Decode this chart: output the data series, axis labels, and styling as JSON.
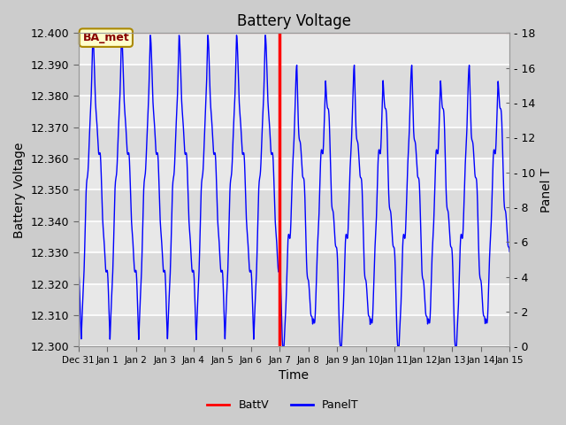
{
  "title": "Battery Voltage",
  "xlabel": "Time",
  "ylabel_left": "Battery Voltage",
  "ylabel_right": "Panel T",
  "ylim_left": [
    12.3,
    12.4
  ],
  "ylim_right": [
    0,
    18
  ],
  "vline_day": 6,
  "vline_color": "red",
  "fig_bg_color": "#d8d8d8",
  "plot_bg_color": "#e8e8e8",
  "band_color1": "#e0e0e0",
  "band_color2": "#d0d0d0",
  "batt_line_color": "red",
  "panel_line_color": "blue",
  "batt_level": 12.4,
  "annotation_text": "BA_met",
  "annotation_bg": "#ffffcc",
  "annotation_border": "#aa8800",
  "annotation_text_color": "#880000",
  "x_tick_labels": [
    "Dec 31",
    "Jan 1",
    "Jan 2",
    "Jan 3",
    "Jan 4",
    "Jan 5",
    "Jan 6",
    "Jan 7",
    "Jan 8",
    "Jan 9",
    "Jan 10",
    "Jan 11",
    "Jan 12",
    "Jan 13",
    "Jan 14",
    "Jan 15"
  ],
  "x_tick_positions": [
    -1,
    0,
    1,
    2,
    3,
    4,
    5,
    6,
    7,
    8,
    9,
    10,
    11,
    12,
    13,
    14
  ],
  "yticks_left": [
    12.3,
    12.31,
    12.32,
    12.33,
    12.34,
    12.35,
    12.36,
    12.37,
    12.38,
    12.39,
    12.4
  ],
  "yticks_right": [
    0,
    2,
    4,
    6,
    8,
    10,
    12,
    14,
    16,
    18
  ],
  "grid_color": "#cccccc",
  "title_fontsize": 12,
  "axis_fontsize": 9,
  "label_fontsize": 10
}
